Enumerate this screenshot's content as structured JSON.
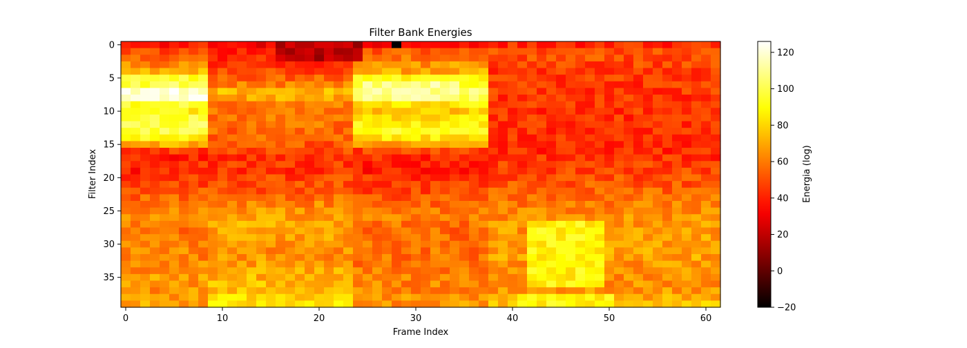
{
  "chart_data": {
    "type": "heatmap",
    "title": "Filter Bank Energies",
    "xlabel": "Frame Index",
    "ylabel": "Filter Index",
    "colorbar_label": "Energia (log)",
    "colormap": "hot",
    "n_frames": 62,
    "n_filters": 40,
    "xlim": [
      -0.5,
      61.5
    ],
    "ylim": [
      39.5,
      -0.5
    ],
    "x_ticks": [
      0,
      10,
      20,
      30,
      40,
      50,
      60
    ],
    "y_ticks": [
      0,
      5,
      10,
      15,
      20,
      25,
      30,
      35
    ],
    "x_tick_labels": [
      "0",
      "10",
      "20",
      "30",
      "40",
      "50",
      "60"
    ],
    "y_tick_labels": [
      "0",
      "5",
      "10",
      "15",
      "20",
      "25",
      "30",
      "35"
    ],
    "color_range": [
      -20,
      126
    ],
    "colorbar_ticks": [
      -20,
      0,
      20,
      40,
      60,
      80,
      100,
      120
    ],
    "colorbar_tick_labels": [
      "−20",
      "0",
      "20",
      "40",
      "60",
      "80",
      "100",
      "120"
    ],
    "row_profile_segments": [
      {
        "frames": [
          0,
          8
        ],
        "filters": [
          0,
          1,
          2,
          3,
          4,
          5,
          6,
          7,
          8,
          9,
          10,
          11,
          12,
          13,
          14,
          15,
          16,
          17,
          18,
          19,
          20,
          21,
          22,
          23,
          24,
          25,
          26,
          27,
          28,
          29,
          30,
          31,
          32,
          33,
          34,
          35,
          36,
          37,
          38,
          39
        ],
        "values": [
          38,
          48,
          55,
          62,
          70,
          95,
          100,
          118,
          112,
          95,
          88,
          95,
          100,
          98,
          88,
          70,
          45,
          40,
          42,
          40,
          45,
          48,
          52,
          55,
          60,
          60,
          62,
          60,
          58,
          60,
          62,
          63,
          62,
          65,
          65,
          68,
          65,
          65,
          68,
          68
        ]
      },
      {
        "frames": [
          9,
          23
        ],
        "filters": [
          0,
          1,
          2,
          3,
          4,
          5,
          6,
          7,
          8,
          9,
          10,
          11,
          12,
          13,
          14,
          15,
          16,
          17,
          18,
          19,
          20,
          21,
          22,
          23,
          24,
          25,
          26,
          27,
          28,
          29,
          30,
          31,
          32,
          33,
          34,
          35,
          36,
          37,
          38,
          39
        ],
        "values": [
          30,
          40,
          42,
          45,
          48,
          55,
          60,
          72,
          70,
          60,
          58,
          58,
          58,
          56,
          55,
          52,
          48,
          45,
          45,
          45,
          48,
          50,
          52,
          58,
          62,
          65,
          68,
          70,
          70,
          68,
          66,
          64,
          65,
          68,
          70,
          72,
          74,
          76,
          80,
          82
        ]
      },
      {
        "frames": [
          24,
          37
        ],
        "filters": [
          0,
          1,
          2,
          3,
          4,
          5,
          6,
          7,
          8,
          9,
          10,
          11,
          12,
          13,
          14,
          15,
          16,
          17,
          18,
          19,
          20,
          21,
          22,
          23,
          24,
          25,
          26,
          27,
          28,
          29,
          30,
          31,
          32,
          33,
          34,
          35,
          36,
          37,
          38,
          39
        ],
        "values": [
          35,
          52,
          60,
          65,
          70,
          88,
          92,
          105,
          100,
          85,
          78,
          82,
          90,
          92,
          85,
          70,
          48,
          42,
          38,
          40,
          44,
          46,
          48,
          52,
          55,
          58,
          60,
          58,
          56,
          56,
          58,
          58,
          58,
          58,
          60,
          62,
          62,
          62,
          64,
          65
        ]
      },
      {
        "frames": [
          38,
          61
        ],
        "filters": [
          0,
          1,
          2,
          3,
          4,
          5,
          6,
          7,
          8,
          9,
          10,
          11,
          12,
          13,
          14,
          15,
          16,
          17,
          18,
          19,
          20,
          21,
          22,
          23,
          24,
          25,
          26,
          27,
          28,
          29,
          30,
          31,
          32,
          33,
          34,
          35,
          36,
          37,
          38,
          39
        ],
        "values": [
          42,
          50,
          50,
          48,
          46,
          46,
          45,
          45,
          45,
          45,
          44,
          44,
          44,
          43,
          43,
          42,
          42,
          44,
          46,
          48,
          50,
          52,
          55,
          58,
          60,
          62,
          64,
          66,
          66,
          68,
          68,
          68,
          68,
          66,
          66,
          64,
          64,
          66,
          70,
          74
        ]
      }
    ],
    "hot_spots": [
      {
        "frames": [
          1,
          8
        ],
        "filters": [
          7,
          8
        ],
        "value": 120
      },
      {
        "frames": [
          25,
          34
        ],
        "filters": [
          6,
          8
        ],
        "value": 108
      },
      {
        "frames": [
          42,
          49
        ],
        "filters": [
          27,
          36
        ],
        "value": 88
      },
      {
        "frames": [
          41,
          50
        ],
        "filters": [
          38,
          39
        ],
        "value": 88
      },
      {
        "frames": [
          16,
          24
        ],
        "filters": [
          0,
          2
        ],
        "value": 18
      },
      {
        "frames": [
          28,
          28
        ],
        "filters": [
          0,
          0
        ],
        "value": -20
      }
    ],
    "noise_amplitude": 9
  }
}
